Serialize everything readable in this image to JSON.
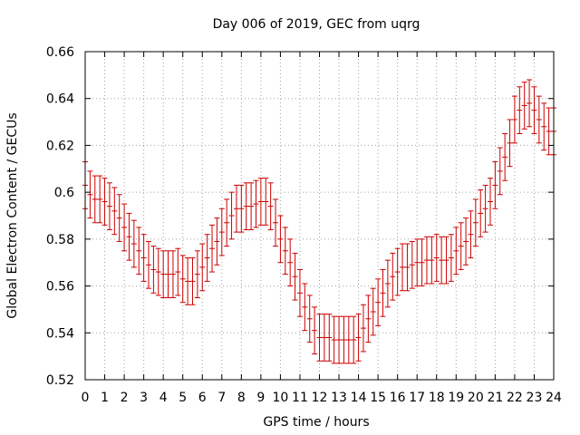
{
  "chart_data": {
    "type": "errorbar",
    "title": "Day 006 of 2019, GEC from uqrg",
    "xlabel": "GPS time / hours",
    "ylabel": "Global Electron Content / GECUs",
    "xlim": [
      0,
      24
    ],
    "ylim": [
      0.52,
      0.66
    ],
    "xticks": [
      "0",
      "1",
      "2",
      "3",
      "4",
      "5",
      "6",
      "7",
      "8",
      "9",
      "10",
      "11",
      "12",
      "13",
      "14",
      "15",
      "16",
      "17",
      "18",
      "19",
      "20",
      "21",
      "22",
      "23",
      "24"
    ],
    "yticks": [
      "0.52",
      "0.54",
      "0.56",
      "0.58",
      "0.6",
      "0.62",
      "0.64",
      "0.66"
    ],
    "grid": true,
    "color": "#cc0000",
    "series": [
      {
        "name": "GEC",
        "x": [
          0,
          0.25,
          0.5,
          0.75,
          1,
          1.25,
          1.5,
          1.75,
          2,
          2.25,
          2.5,
          2.75,
          3,
          3.25,
          3.5,
          3.75,
          4,
          4.25,
          4.5,
          4.75,
          5,
          5.25,
          5.5,
          5.75,
          6,
          6.25,
          6.5,
          6.75,
          7,
          7.25,
          7.5,
          7.75,
          8,
          8.25,
          8.5,
          8.75,
          9,
          9.25,
          9.5,
          9.75,
          10,
          10.25,
          10.5,
          10.75,
          11,
          11.25,
          11.5,
          11.75,
          12,
          12.25,
          12.5,
          12.75,
          13,
          13.25,
          13.5,
          13.75,
          14,
          14.25,
          14.5,
          14.75,
          15,
          15.25,
          15.5,
          15.75,
          16,
          16.25,
          16.5,
          16.75,
          17,
          17.25,
          17.5,
          17.75,
          18,
          18.25,
          18.5,
          18.75,
          19,
          19.25,
          19.5,
          19.75,
          20,
          20.25,
          20.5,
          20.75,
          21,
          21.25,
          21.5,
          21.75,
          22,
          22.25,
          22.5,
          22.75,
          23,
          23.25,
          23.5,
          23.75,
          24
        ],
        "y": [
          0.603,
          0.599,
          0.597,
          0.597,
          0.596,
          0.594,
          0.592,
          0.589,
          0.585,
          0.581,
          0.578,
          0.575,
          0.572,
          0.569,
          0.567,
          0.566,
          0.565,
          0.565,
          0.565,
          0.566,
          0.563,
          0.562,
          0.562,
          0.565,
          0.568,
          0.572,
          0.576,
          0.579,
          0.583,
          0.587,
          0.59,
          0.593,
          0.593,
          0.594,
          0.594,
          0.595,
          0.596,
          0.596,
          0.594,
          0.587,
          0.58,
          0.575,
          0.57,
          0.564,
          0.557,
          0.551,
          0.546,
          0.541,
          0.538,
          0.538,
          0.538,
          0.537,
          0.537,
          0.537,
          0.537,
          0.537,
          0.538,
          0.542,
          0.546,
          0.549,
          0.553,
          0.557,
          0.561,
          0.564,
          0.566,
          0.568,
          0.568,
          0.569,
          0.57,
          0.57,
          0.571,
          0.571,
          0.572,
          0.571,
          0.571,
          0.572,
          0.575,
          0.577,
          0.579,
          0.582,
          0.587,
          0.591,
          0.593,
          0.596,
          0.603,
          0.609,
          0.615,
          0.621,
          0.631,
          0.635,
          0.637,
          0.638,
          0.635,
          0.631,
          0.628,
          0.626,
          0.626
        ],
        "err": 0.01
      }
    ]
  }
}
